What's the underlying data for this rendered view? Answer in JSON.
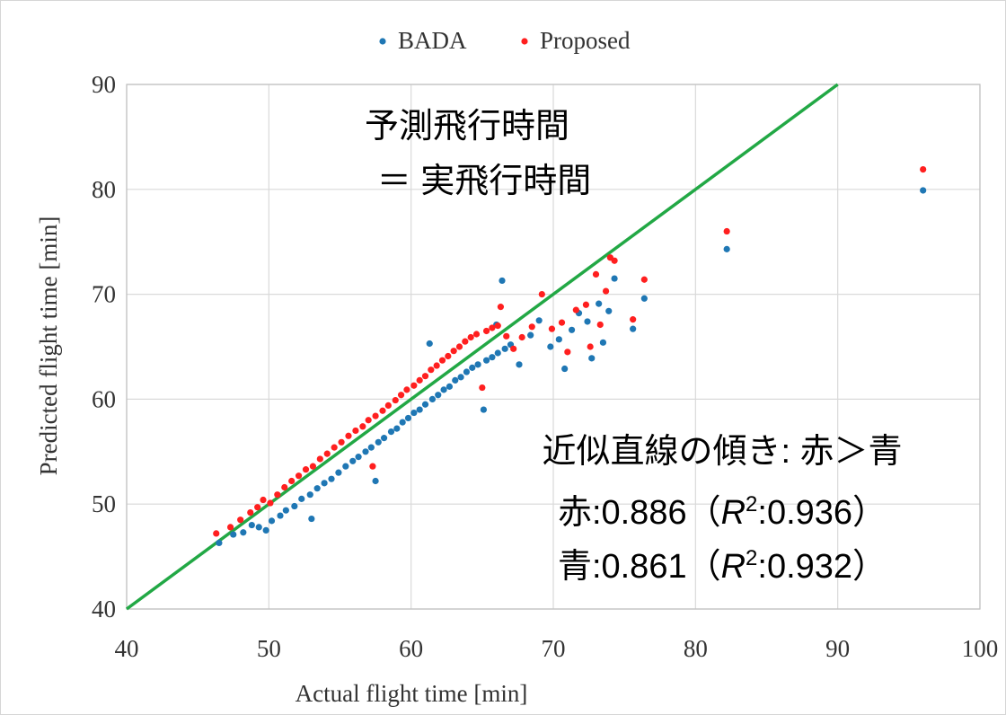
{
  "chart_data": {
    "type": "scatter",
    "xlabel": "Actual flight time [min]",
    "ylabel": "Predicted flight time [min]",
    "xlim": [
      40,
      100
    ],
    "ylim": [
      40,
      90
    ],
    "xticks": [
      40,
      50,
      60,
      70,
      80,
      90,
      100
    ],
    "yticks": [
      40,
      50,
      60,
      70,
      80,
      90
    ],
    "xtick_labels": [
      "40",
      "50",
      "60",
      "70",
      "80",
      "90",
      "100"
    ],
    "ytick_labels": [
      "40",
      "50",
      "60",
      "70",
      "80",
      "90"
    ],
    "grid": true,
    "legend_position": "top-center",
    "colors": {
      "BADA": "#1f77b4",
      "Proposed": "#ff1f1f",
      "reference_line": "#22a845",
      "grid": "#d9d9d9"
    },
    "series": [
      {
        "name": "BADA",
        "points": [
          [
            46.5,
            46.3
          ],
          [
            47.5,
            47.1
          ],
          [
            48.2,
            47.3
          ],
          [
            48.8,
            48.0
          ],
          [
            49.3,
            47.8
          ],
          [
            49.8,
            47.5
          ],
          [
            50.2,
            48.4
          ],
          [
            50.8,
            48.9
          ],
          [
            51.2,
            49.4
          ],
          [
            51.8,
            49.8
          ],
          [
            52.3,
            50.5
          ],
          [
            52.9,
            50.9
          ],
          [
            53.0,
            48.6
          ],
          [
            53.4,
            51.5
          ],
          [
            53.9,
            52.0
          ],
          [
            54.4,
            52.4
          ],
          [
            54.9,
            53.0
          ],
          [
            55.4,
            53.6
          ],
          [
            55.9,
            54.1
          ],
          [
            56.3,
            54.5
          ],
          [
            56.8,
            55.0
          ],
          [
            57.2,
            55.4
          ],
          [
            57.5,
            52.2
          ],
          [
            57.7,
            55.9
          ],
          [
            58.1,
            56.3
          ],
          [
            58.6,
            56.9
          ],
          [
            59.0,
            57.2
          ],
          [
            59.4,
            57.8
          ],
          [
            59.8,
            58.2
          ],
          [
            60.2,
            58.7
          ],
          [
            60.6,
            59.0
          ],
          [
            61.0,
            59.5
          ],
          [
            61.3,
            65.3
          ],
          [
            61.5,
            60.0
          ],
          [
            61.9,
            60.4
          ],
          [
            62.3,
            60.9
          ],
          [
            62.7,
            61.2
          ],
          [
            63.1,
            61.8
          ],
          [
            63.5,
            62.1
          ],
          [
            63.9,
            62.6
          ],
          [
            64.3,
            63.0
          ],
          [
            64.7,
            63.3
          ],
          [
            65.1,
            59.0
          ],
          [
            65.3,
            63.7
          ],
          [
            65.7,
            64.0
          ],
          [
            66.0,
            67.1
          ],
          [
            66.1,
            64.4
          ],
          [
            66.4,
            71.3
          ],
          [
            66.6,
            64.8
          ],
          [
            67.0,
            65.2
          ],
          [
            67.6,
            63.3
          ],
          [
            68.4,
            66.1
          ],
          [
            69.0,
            67.5
          ],
          [
            69.8,
            65.0
          ],
          [
            70.4,
            65.7
          ],
          [
            70.8,
            62.9
          ],
          [
            71.3,
            66.6
          ],
          [
            71.8,
            68.2
          ],
          [
            72.4,
            67.4
          ],
          [
            72.7,
            63.9
          ],
          [
            73.2,
            69.1
          ],
          [
            73.5,
            65.4
          ],
          [
            73.9,
            68.4
          ],
          [
            74.3,
            71.5
          ],
          [
            75.6,
            66.7
          ],
          [
            76.4,
            69.6
          ],
          [
            82.2,
            74.3
          ],
          [
            96.0,
            79.9
          ]
        ]
      },
      {
        "name": "Proposed",
        "points": [
          [
            46.3,
            47.2
          ],
          [
            47.3,
            47.8
          ],
          [
            48.0,
            48.5
          ],
          [
            48.7,
            49.2
          ],
          [
            49.2,
            49.7
          ],
          [
            49.6,
            50.4
          ],
          [
            50.1,
            50.1
          ],
          [
            50.6,
            50.9
          ],
          [
            51.1,
            51.6
          ],
          [
            51.6,
            52.2
          ],
          [
            52.1,
            52.7
          ],
          [
            52.6,
            53.3
          ],
          [
            53.1,
            53.6
          ],
          [
            53.6,
            54.3
          ],
          [
            54.1,
            54.8
          ],
          [
            54.6,
            55.4
          ],
          [
            55.1,
            55.9
          ],
          [
            55.6,
            56.5
          ],
          [
            56.1,
            57.0
          ],
          [
            56.6,
            57.4
          ],
          [
            57.0,
            58.0
          ],
          [
            57.3,
            53.6
          ],
          [
            57.5,
            58.4
          ],
          [
            58.0,
            58.9
          ],
          [
            58.4,
            59.4
          ],
          [
            58.9,
            59.9
          ],
          [
            59.3,
            60.4
          ],
          [
            59.7,
            60.9
          ],
          [
            60.2,
            61.3
          ],
          [
            60.6,
            61.8
          ],
          [
            61.0,
            62.2
          ],
          [
            61.4,
            62.8
          ],
          [
            61.8,
            63.2
          ],
          [
            62.2,
            63.7
          ],
          [
            62.6,
            64.1
          ],
          [
            63.0,
            64.6
          ],
          [
            63.4,
            65.0
          ],
          [
            63.8,
            65.5
          ],
          [
            64.2,
            65.9
          ],
          [
            64.6,
            66.2
          ],
          [
            65.0,
            61.1
          ],
          [
            65.3,
            66.5
          ],
          [
            65.7,
            66.8
          ],
          [
            66.1,
            67.0
          ],
          [
            66.3,
            68.8
          ],
          [
            66.7,
            66.0
          ],
          [
            67.2,
            64.8
          ],
          [
            67.8,
            65.9
          ],
          [
            68.5,
            66.9
          ],
          [
            69.2,
            70.0
          ],
          [
            69.9,
            66.7
          ],
          [
            70.6,
            67.3
          ],
          [
            71.0,
            64.5
          ],
          [
            71.6,
            68.5
          ],
          [
            72.3,
            69.0
          ],
          [
            72.6,
            65.0
          ],
          [
            73.0,
            71.9
          ],
          [
            73.3,
            67.1
          ],
          [
            73.7,
            70.3
          ],
          [
            74.0,
            73.5
          ],
          [
            74.3,
            73.2
          ],
          [
            75.6,
            67.6
          ],
          [
            76.4,
            71.4
          ],
          [
            82.2,
            76.0
          ],
          [
            96.0,
            81.9
          ]
        ]
      }
    ],
    "reference_line": {
      "from": [
        40,
        40
      ],
      "to": [
        90,
        90
      ]
    },
    "annotations": [
      {
        "id": "line_label_1",
        "text": "予測飛行時間"
      },
      {
        "id": "line_label_2",
        "text": "＝ 実飛行時間"
      },
      {
        "id": "slope_title",
        "text": "近似直線の傾き: 赤＞青"
      },
      {
        "id": "red_fit",
        "prefix": "赤:0.886（",
        "r": "R",
        "sup": "2",
        "suffix": ":0.936）"
      },
      {
        "id": "blue_fit",
        "prefix": "青:0.861（",
        "r": "R",
        "sup": "2",
        "suffix": ":0.932）"
      }
    ]
  }
}
